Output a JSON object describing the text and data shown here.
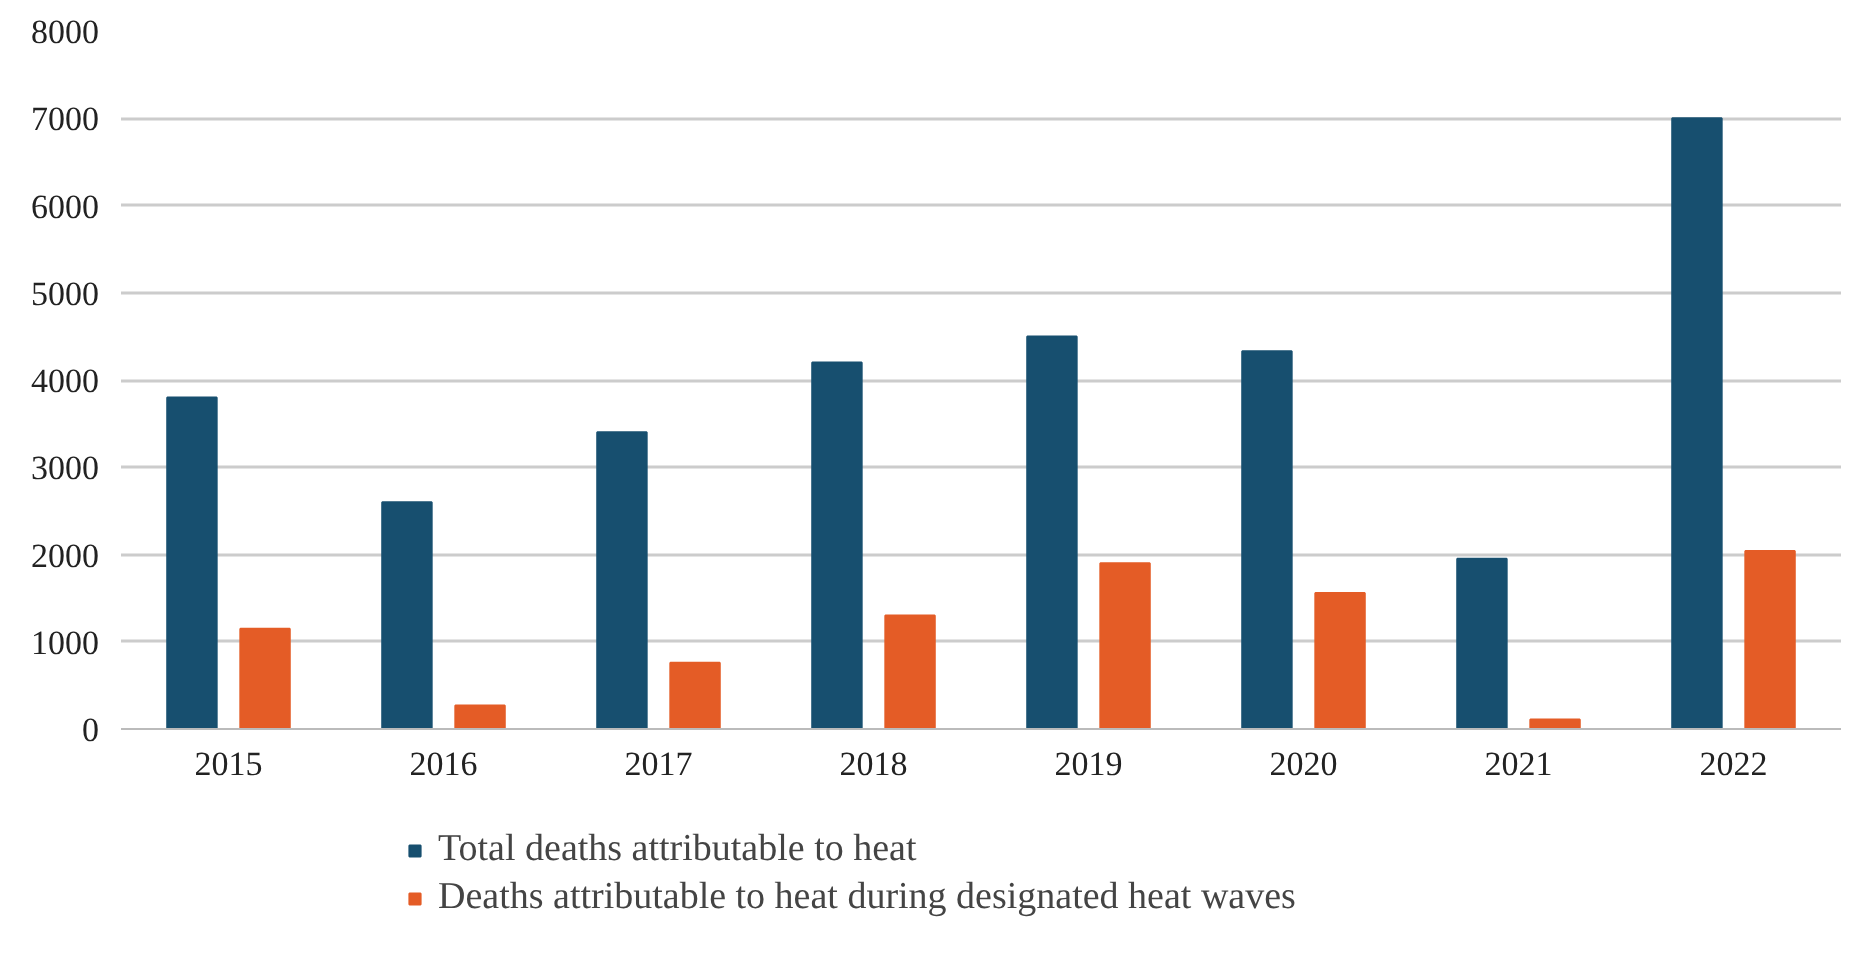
{
  "chart_data": {
    "type": "bar",
    "categories": [
      "2015",
      "2016",
      "2017",
      "2018",
      "2019",
      "2020",
      "2021",
      "2022"
    ],
    "series": [
      {
        "name": "Total deaths attributable to heat",
        "color": "#174f6f",
        "values": [
          3800,
          2600,
          3400,
          4200,
          4500,
          4330,
          1950,
          7000
        ]
      },
      {
        "name": "Deaths attributable to heat during designated heat waves",
        "color": "#e45c26",
        "values": [
          1150,
          270,
          760,
          1300,
          1900,
          1560,
          110,
          2040
        ]
      }
    ],
    "ylim": [
      0,
      8000
    ],
    "yticks": [
      0,
      1000,
      2000,
      3000,
      4000,
      5000,
      6000,
      7000,
      8000
    ],
    "grid": "y",
    "legend": "bottom"
  }
}
